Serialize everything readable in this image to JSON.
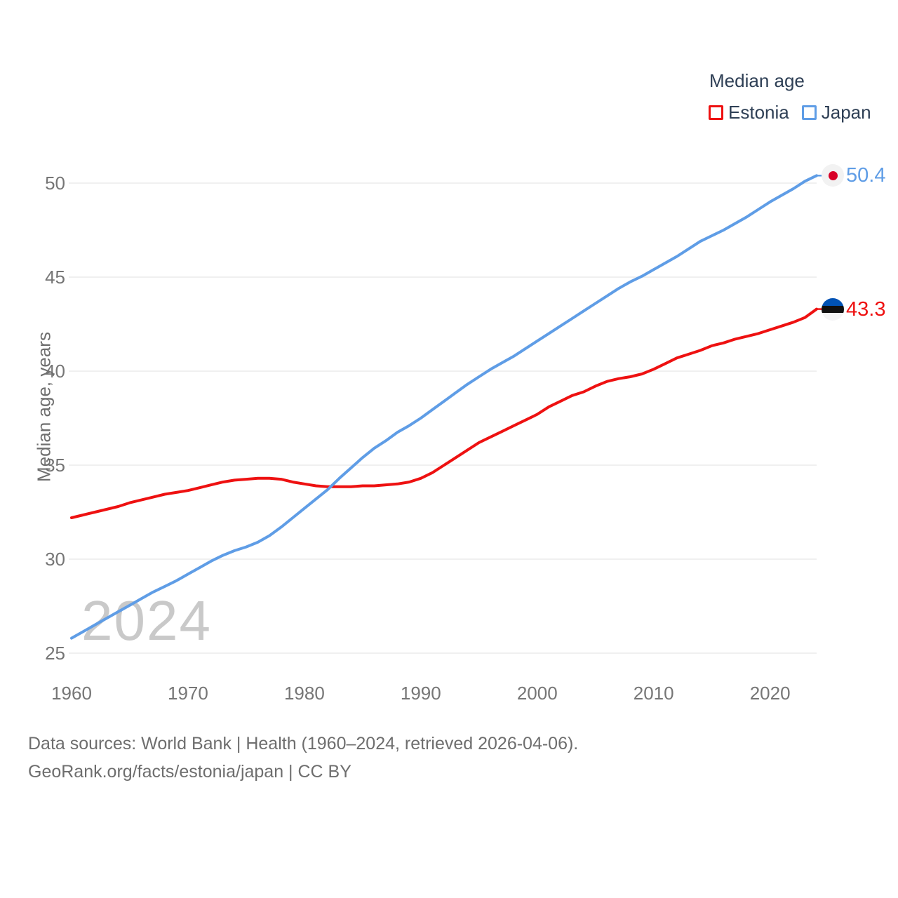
{
  "page": {
    "watermark": "2024",
    "footer_line1": "Data sources: World Bank | Health (1960–2024, retrieved 2026-04-06).",
    "footer_line2": "GeoRank.org/facts/estonia/japan | CC BY"
  },
  "legend": {
    "title": "Median age",
    "items": [
      {
        "label": "Estonia",
        "color": "#ee1111"
      },
      {
        "label": "Japan",
        "color": "#5f9de6"
      }
    ]
  },
  "colors": {
    "estonia_line": "#ee1111",
    "japan_line": "#5f9de6",
    "gridline": "#ececec",
    "tick_label": "#767676",
    "legend_text": "#2e3f55",
    "watermark": "#c9c9c9",
    "footer_text": "#6e6e6e",
    "japan_flag_red": "#d80027",
    "estonia_flag_blue": "#0052b4"
  },
  "chart_data": {
    "type": "line",
    "title": "Median age",
    "xlabel": "",
    "ylabel": "Median age, years",
    "grid": "horizontal",
    "legend_position": "top-right",
    "xlim": [
      1960,
      2024
    ],
    "ylim": [
      25,
      51.5
    ],
    "x_ticks": [
      1960,
      1970,
      1980,
      1990,
      2000,
      2010,
      2020
    ],
    "y_ticks": [
      25,
      30,
      35,
      40,
      45,
      50
    ],
    "x": [
      1960,
      1961,
      1962,
      1963,
      1964,
      1965,
      1966,
      1967,
      1968,
      1969,
      1970,
      1971,
      1972,
      1973,
      1974,
      1975,
      1976,
      1977,
      1978,
      1979,
      1980,
      1981,
      1982,
      1983,
      1984,
      1985,
      1986,
      1987,
      1988,
      1989,
      1990,
      1991,
      1992,
      1993,
      1994,
      1995,
      1996,
      1997,
      1998,
      1999,
      2000,
      2001,
      2002,
      2003,
      2004,
      2005,
      2006,
      2007,
      2008,
      2009,
      2010,
      2011,
      2012,
      2013,
      2014,
      2015,
      2016,
      2017,
      2018,
      2019,
      2020,
      2021,
      2022,
      2023,
      2024
    ],
    "series": [
      {
        "name": "Estonia",
        "color": "#ee1111",
        "end_label": "43.3",
        "flag": "estonia",
        "values": [
          32.2,
          32.35,
          32.5,
          32.65,
          32.8,
          33.0,
          33.15,
          33.3,
          33.45,
          33.55,
          33.65,
          33.8,
          33.95,
          34.1,
          34.2,
          34.25,
          34.3,
          34.3,
          34.25,
          34.1,
          34.0,
          33.9,
          33.85,
          33.85,
          33.85,
          33.9,
          33.9,
          33.95,
          34.0,
          34.1,
          34.3,
          34.6,
          35.0,
          35.4,
          35.8,
          36.2,
          36.5,
          36.8,
          37.1,
          37.4,
          37.7,
          38.1,
          38.4,
          38.7,
          38.9,
          39.2,
          39.45,
          39.6,
          39.7,
          39.85,
          40.1,
          40.4,
          40.7,
          40.9,
          41.1,
          41.35,
          41.5,
          41.7,
          41.85,
          42.0,
          42.2,
          42.4,
          42.6,
          42.85,
          43.3
        ]
      },
      {
        "name": "Japan",
        "color": "#5f9de6",
        "end_label": "50.4",
        "flag": "japan",
        "values": [
          25.8,
          26.15,
          26.5,
          26.85,
          27.2,
          27.55,
          27.9,
          28.25,
          28.55,
          28.85,
          29.2,
          29.55,
          29.9,
          30.2,
          30.45,
          30.65,
          30.9,
          31.25,
          31.7,
          32.2,
          32.7,
          33.2,
          33.7,
          34.3,
          34.85,
          35.4,
          35.9,
          36.3,
          36.75,
          37.1,
          37.5,
          37.95,
          38.4,
          38.85,
          39.3,
          39.7,
          40.1,
          40.45,
          40.8,
          41.2,
          41.6,
          42.0,
          42.4,
          42.8,
          43.2,
          43.6,
          44.0,
          44.4,
          44.75,
          45.05,
          45.4,
          45.75,
          46.1,
          46.5,
          46.9,
          47.2,
          47.5,
          47.85,
          48.2,
          48.6,
          49.0,
          49.35,
          49.7,
          50.1,
          50.4
        ]
      }
    ]
  }
}
